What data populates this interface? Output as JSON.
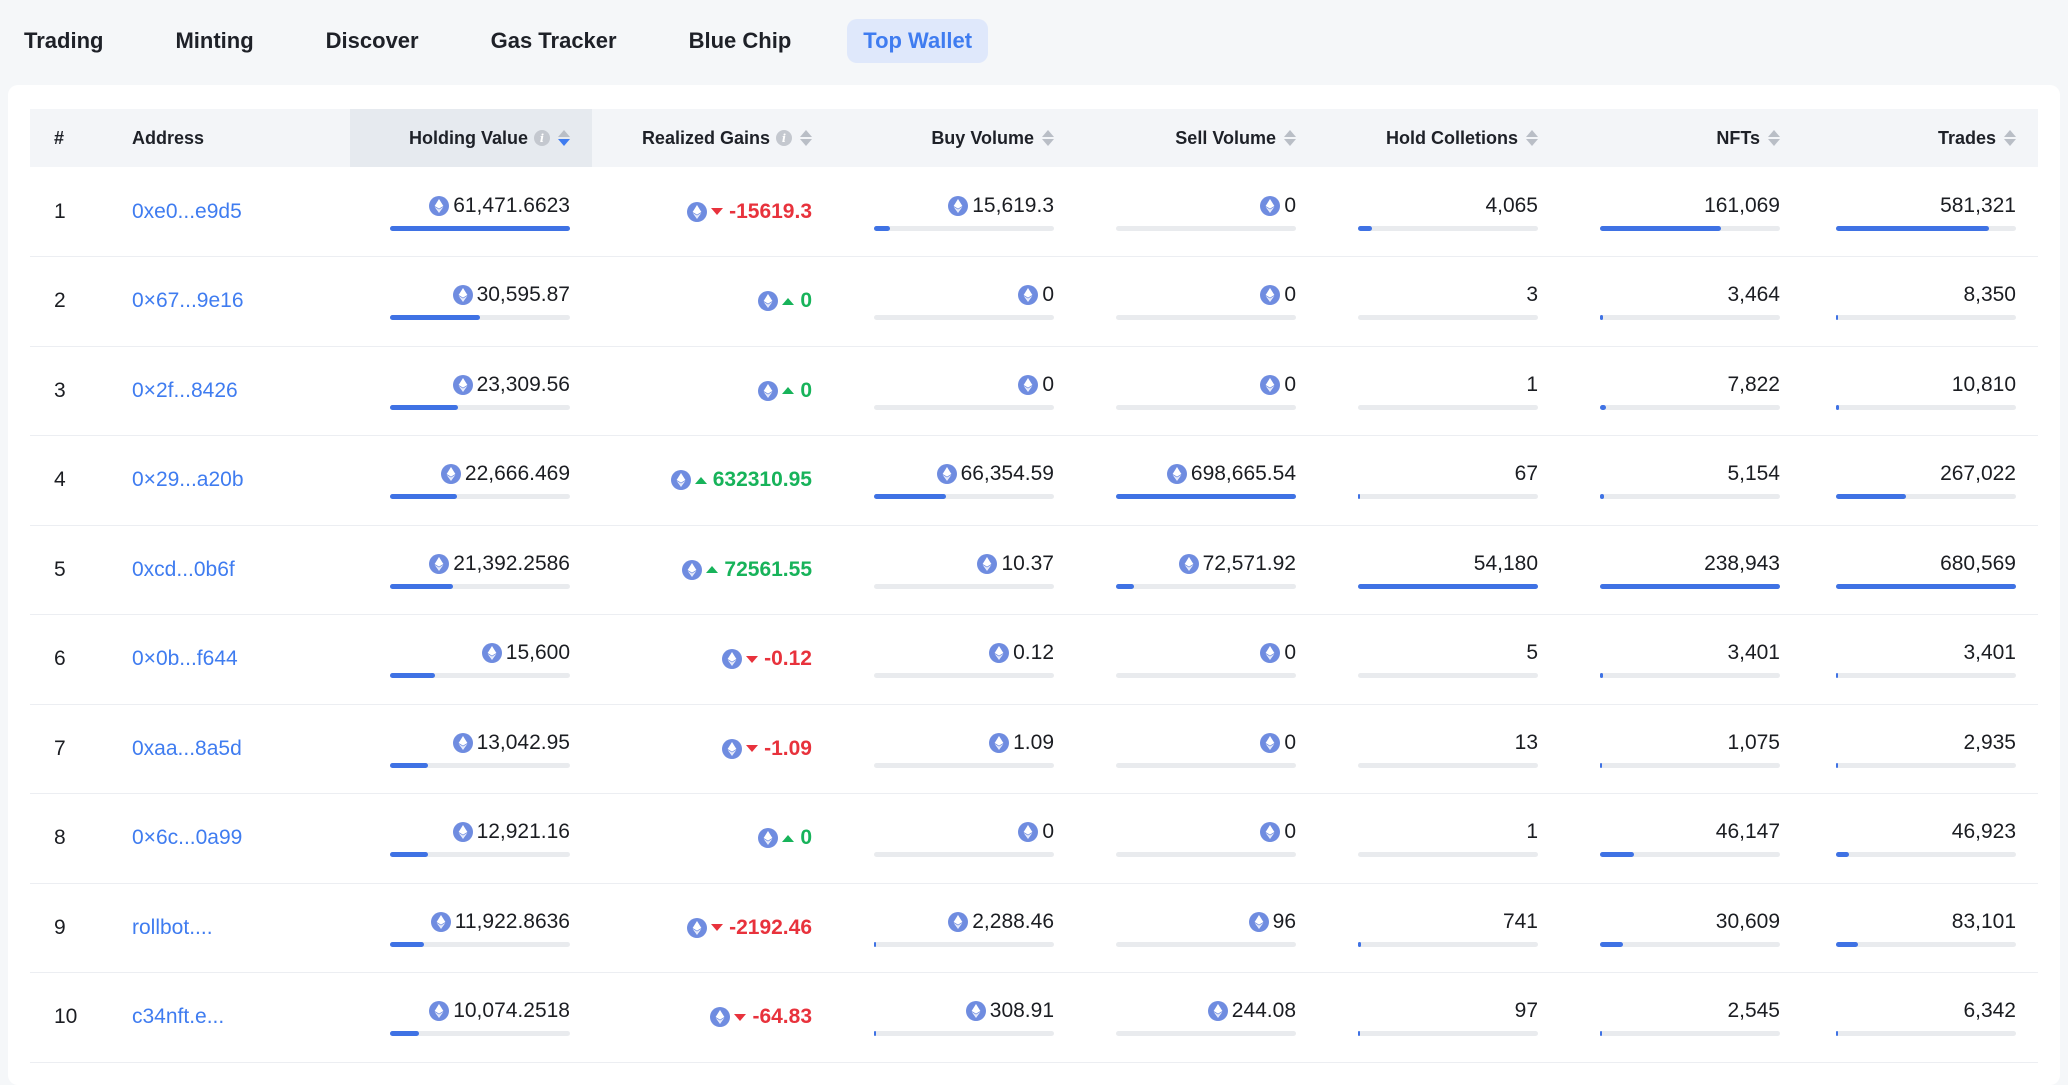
{
  "tabs": [
    {
      "label": "Trading",
      "active": false
    },
    {
      "label": "Minting",
      "active": false
    },
    {
      "label": "Discover",
      "active": false
    },
    {
      "label": "Gas Tracker",
      "active": false
    },
    {
      "label": "Blue Chip",
      "active": false
    },
    {
      "label": "Top Wallet",
      "active": true
    }
  ],
  "colors": {
    "accent": "#3f7cf0",
    "positive": "#17b35a",
    "negative": "#e8323c",
    "bar": "#3f72e4"
  },
  "table": {
    "headers": {
      "rank": "#",
      "address": "Address",
      "holding_value": "Holding Value",
      "realized_gains": "Realized Gains",
      "buy_volume": "Buy Volume",
      "sell_volume": "Sell Volume",
      "hold_collections": "Hold Colletions",
      "nfts": "NFTs",
      "trades": "Trades"
    },
    "sorted_by": "holding_value",
    "sort_direction": "desc",
    "rows": [
      {
        "rank": "1",
        "address": "0xe0...e9d5",
        "holding": {
          "text": "61,471.6623",
          "bar": 1.0
        },
        "gain": {
          "text": "-15619.3",
          "dir": "neg"
        },
        "buy": {
          "text": "15,619.3",
          "bar": 0.09
        },
        "sell": {
          "text": "0",
          "bar": 0
        },
        "hold": {
          "text": "4,065",
          "bar": 0.08
        },
        "nfts": {
          "text": "161,069",
          "bar": 0.67
        },
        "trades": {
          "text": "581,321",
          "bar": 0.85
        }
      },
      {
        "rank": "2",
        "address": "0×67...9e16",
        "holding": {
          "text": "30,595.87",
          "bar": 0.5
        },
        "gain": {
          "text": "0",
          "dir": "pos"
        },
        "buy": {
          "text": "0",
          "bar": 0
        },
        "sell": {
          "text": "0",
          "bar": 0
        },
        "hold": {
          "text": "3",
          "bar": 0
        },
        "nfts": {
          "text": "3,464",
          "bar": 0.015
        },
        "trades": {
          "text": "8,350",
          "bar": 0.012
        }
      },
      {
        "rank": "3",
        "address": "0×2f...8426",
        "holding": {
          "text": "23,309.56",
          "bar": 0.38
        },
        "gain": {
          "text": "0",
          "dir": "pos"
        },
        "buy": {
          "text": "0",
          "bar": 0
        },
        "sell": {
          "text": "0",
          "bar": 0
        },
        "hold": {
          "text": "1",
          "bar": 0
        },
        "nfts": {
          "text": "7,822",
          "bar": 0.033
        },
        "trades": {
          "text": "10,810",
          "bar": 0.016
        }
      },
      {
        "rank": "4",
        "address": "0×29...a20b",
        "holding": {
          "text": "22,666.469",
          "bar": 0.37
        },
        "gain": {
          "text": "632310.95",
          "dir": "pos"
        },
        "buy": {
          "text": "66,354.59",
          "bar": 0.4
        },
        "sell": {
          "text": "698,665.54",
          "bar": 1.0
        },
        "hold": {
          "text": "67",
          "bar": 0.001
        },
        "nfts": {
          "text": "5,154",
          "bar": 0.022
        },
        "trades": {
          "text": "267,022",
          "bar": 0.39
        }
      },
      {
        "rank": "5",
        "address": "0xcd...0b6f",
        "holding": {
          "text": "21,392.2586",
          "bar": 0.35
        },
        "gain": {
          "text": "72561.55",
          "dir": "pos"
        },
        "buy": {
          "text": "10.37",
          "bar": 0
        },
        "sell": {
          "text": "72,571.92",
          "bar": 0.1
        },
        "hold": {
          "text": "54,180",
          "bar": 1.0
        },
        "nfts": {
          "text": "238,943",
          "bar": 1.0
        },
        "trades": {
          "text": "680,569",
          "bar": 1.0
        }
      },
      {
        "rank": "6",
        "address": "0×0b...f644",
        "holding": {
          "text": "15,600",
          "bar": 0.25
        },
        "gain": {
          "text": "-0.12",
          "dir": "neg"
        },
        "buy": {
          "text": "0.12",
          "bar": 0
        },
        "sell": {
          "text": "0",
          "bar": 0
        },
        "hold": {
          "text": "5",
          "bar": 0
        },
        "nfts": {
          "text": "3,401",
          "bar": 0.014
        },
        "trades": {
          "text": "3,401",
          "bar": 0.005
        }
      },
      {
        "rank": "7",
        "address": "0xaa...8a5d",
        "holding": {
          "text": "13,042.95",
          "bar": 0.21
        },
        "gain": {
          "text": "-1.09",
          "dir": "neg"
        },
        "buy": {
          "text": "1.09",
          "bar": 0
        },
        "sell": {
          "text": "0",
          "bar": 0
        },
        "hold": {
          "text": "13",
          "bar": 0
        },
        "nfts": {
          "text": "1,075",
          "bar": 0.005
        },
        "trades": {
          "text": "2,935",
          "bar": 0.004
        }
      },
      {
        "rank": "8",
        "address": "0×6c...0a99",
        "holding": {
          "text": "12,921.16",
          "bar": 0.21
        },
        "gain": {
          "text": "0",
          "dir": "pos"
        },
        "buy": {
          "text": "0",
          "bar": 0
        },
        "sell": {
          "text": "0",
          "bar": 0
        },
        "hold": {
          "text": "1",
          "bar": 0
        },
        "nfts": {
          "text": "46,147",
          "bar": 0.19
        },
        "trades": {
          "text": "46,923",
          "bar": 0.07
        }
      },
      {
        "rank": "9",
        "address": "rollbot....",
        "holding": {
          "text": "11,922.8636",
          "bar": 0.19
        },
        "gain": {
          "text": "-2192.46",
          "dir": "neg"
        },
        "buy": {
          "text": "2,288.46",
          "bar": 0.01
        },
        "sell": {
          "text": "96",
          "bar": 0
        },
        "hold": {
          "text": "741",
          "bar": 0.014
        },
        "nfts": {
          "text": "30,609",
          "bar": 0.13
        },
        "trades": {
          "text": "83,101",
          "bar": 0.12
        }
      },
      {
        "rank": "10",
        "address": "c34nft.e...",
        "holding": {
          "text": "10,074.2518",
          "bar": 0.16
        },
        "gain": {
          "text": "-64.83",
          "dir": "neg"
        },
        "buy": {
          "text": "308.91",
          "bar": 0.005
        },
        "sell": {
          "text": "244.08",
          "bar": 0
        },
        "hold": {
          "text": "97",
          "bar": 0.002
        },
        "nfts": {
          "text": "2,545",
          "bar": 0.011
        },
        "trades": {
          "text": "6,342",
          "bar": 0.009
        }
      }
    ]
  }
}
